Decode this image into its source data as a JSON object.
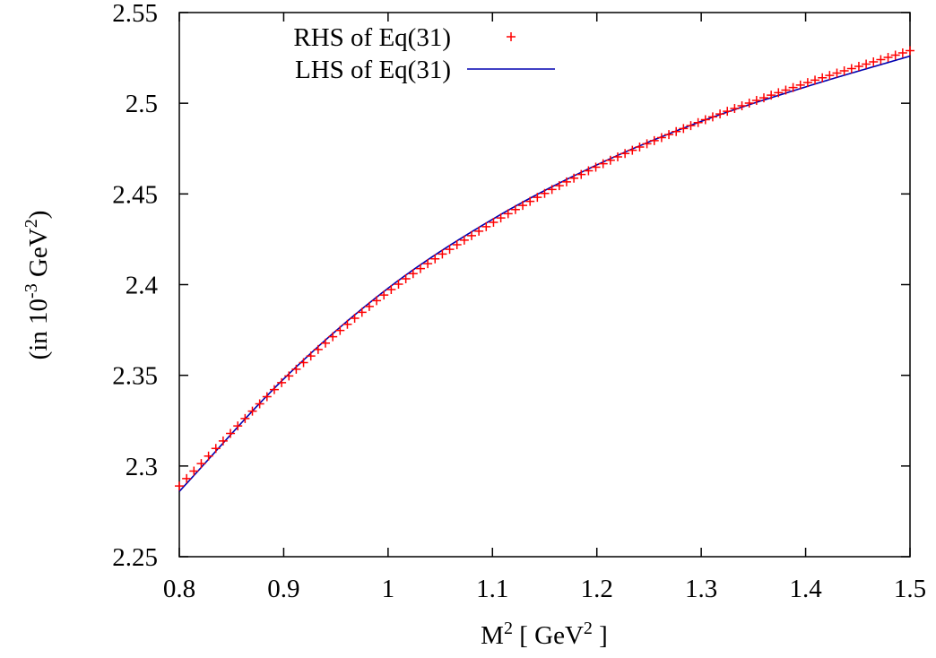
{
  "chart_data": {
    "type": "line",
    "title": "",
    "xlabel": {
      "base": "M",
      "sup1": "2",
      "mid": " [ GeV",
      "sup2": "2",
      "end": " ]"
    },
    "ylabel": {
      "pre": "(in 10",
      "sup1": "-3",
      "mid": " GeV",
      "sup2": "2",
      "end": ")"
    },
    "xlim": [
      0.8,
      1.5
    ],
    "ylim": [
      2.25,
      2.55
    ],
    "x_ticks": [
      "0.8",
      "0.9",
      "1",
      "1.1",
      "1.2",
      "1.3",
      "1.4",
      "1.5"
    ],
    "y_ticks": [
      "2.25",
      "2.3",
      "2.35",
      "2.4",
      "2.45",
      "2.5",
      "2.55"
    ],
    "grid": false,
    "legend_position": "top-left",
    "series": [
      {
        "name": "RHS of Eq(31)",
        "style": "points-plus",
        "color": "#ff0000",
        "x": [
          0.8,
          0.9,
          1.0,
          1.1,
          1.2,
          1.3,
          1.4,
          1.5
        ],
        "y": [
          2.289,
          2.347,
          2.396,
          2.434,
          2.465,
          2.49,
          2.511,
          2.529
        ],
        "sampling_step": 0.007
      },
      {
        "name": "LHS of Eq(31)",
        "style": "line",
        "color": "#0000b0",
        "x": [
          0.8,
          0.9,
          1.0,
          1.1,
          1.2,
          1.3,
          1.4,
          1.5
        ],
        "y": [
          2.286,
          2.348,
          2.398,
          2.436,
          2.466,
          2.49,
          2.509,
          2.526
        ]
      }
    ]
  }
}
